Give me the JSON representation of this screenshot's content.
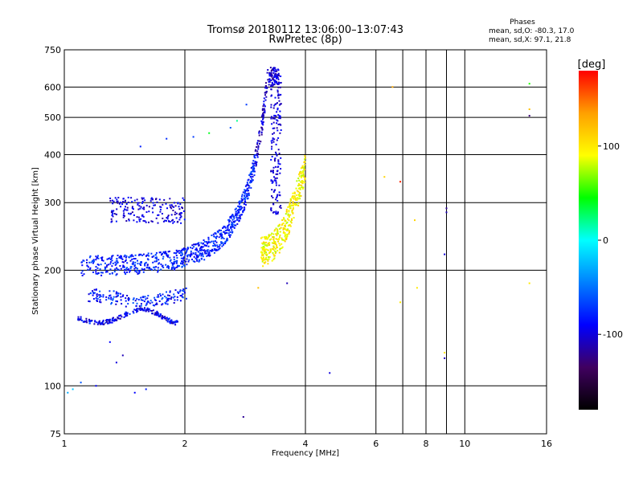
{
  "chart_data": {
    "type": "scatter",
    "title": "Tromsø 20180112 13:06:00–13:07:43",
    "subtitle": "RwPretec (8p)",
    "stats": {
      "heading": "Phases",
      "line_o": "mean, sd,O: -80.3, 17.0",
      "line_x": "mean, sd,X:  97.1, 21.8"
    },
    "xlabel": "Frequency [MHz]",
    "ylabel": "Stationary phase Virtual Height [km]",
    "x_scale": "log",
    "y_scale": "log",
    "xlim": [
      1,
      16
    ],
    "ylim": [
      75,
      750
    ],
    "x_ticks": [
      1,
      2,
      4,
      6,
      8,
      10,
      16
    ],
    "x_tick_labels": [
      "1",
      "2",
      "4",
      "6",
      "8",
      "10",
      "16"
    ],
    "x_minor_grid": [
      7,
      9
    ],
    "y_ticks": [
      75,
      100,
      200,
      300,
      400,
      500,
      600,
      750
    ],
    "y_tick_labels": [
      "75",
      "100",
      "200",
      "300",
      "400",
      "500",
      "600",
      "750"
    ],
    "grid": true,
    "colorbar": {
      "label": "[deg]",
      "range": [
        -180,
        180
      ],
      "ticks": [
        100,
        0,
        -100
      ],
      "tick_labels": [
        "100",
        "0",
        "-100"
      ],
      "colors": [
        "#ff0000",
        "#ffa000",
        "#ffff00",
        "#00ff00",
        "#00ffff",
        "#0080ff",
        "#0000ff",
        "#400060",
        "#000000"
      ]
    },
    "traces": [
      {
        "name": "E-layer echoes",
        "phase": -95,
        "spread": 25,
        "freq": [
          1.05,
          2.0
        ],
        "height": [
          150,
          160
        ]
      },
      {
        "name": "F-layer O-mode trace",
        "phase": -80,
        "spread": 20,
        "freq": [
          1.1,
          3.45
        ],
        "height": [
          205,
          640
        ]
      },
      {
        "name": "Spread F patches",
        "phase": -100,
        "spread": 20,
        "freq": [
          1.3,
          2.0
        ],
        "height": [
          270,
          310
        ]
      },
      {
        "name": "F-layer X-mode trace",
        "phase": 95,
        "spread": 20,
        "freq": [
          3.1,
          4.0
        ],
        "height": [
          225,
          420
        ]
      }
    ],
    "points": [
      {
        "x": 1.55,
        "y": 420,
        "phase": -80
      },
      {
        "x": 1.8,
        "y": 440,
        "phase": -75
      },
      {
        "x": 2.1,
        "y": 445,
        "phase": -70
      },
      {
        "x": 2.3,
        "y": 455,
        "phase": 40
      },
      {
        "x": 2.6,
        "y": 470,
        "phase": -60
      },
      {
        "x": 2.7,
        "y": 490,
        "phase": 20
      },
      {
        "x": 2.85,
        "y": 540,
        "phase": -70
      },
      {
        "x": 3.05,
        "y": 180,
        "phase": 120
      },
      {
        "x": 3.6,
        "y": 185,
        "phase": -110
      },
      {
        "x": 4.6,
        "y": 108,
        "phase": -100
      },
      {
        "x": 2.8,
        "y": 83,
        "phase": -120
      },
      {
        "x": 6.6,
        "y": 600,
        "phase": 130
      },
      {
        "x": 6.3,
        "y": 350,
        "phase": 110
      },
      {
        "x": 6.9,
        "y": 340,
        "phase": 170
      },
      {
        "x": 7.5,
        "y": 270,
        "phase": 110
      },
      {
        "x": 7.6,
        "y": 180,
        "phase": 100
      },
      {
        "x": 6.9,
        "y": 165,
        "phase": 100
      },
      {
        "x": 8.9,
        "y": 220,
        "phase": -100
      },
      {
        "x": 9.0,
        "y": 283,
        "phase": -110
      },
      {
        "x": 9.0,
        "y": 290,
        "phase": -120
      },
      {
        "x": 8.9,
        "y": 122,
        "phase": 100
      },
      {
        "x": 8.9,
        "y": 118,
        "phase": -110
      },
      {
        "x": 14.5,
        "y": 612,
        "phase": 50
      },
      {
        "x": 14.5,
        "y": 525,
        "phase": 120
      },
      {
        "x": 14.5,
        "y": 505,
        "phase": -130
      },
      {
        "x": 14.5,
        "y": 185,
        "phase": 100
      },
      {
        "x": 1.05,
        "y": 98,
        "phase": -20
      },
      {
        "x": 1.02,
        "y": 96,
        "phase": -30
      },
      {
        "x": 1.1,
        "y": 102,
        "phase": -60
      },
      {
        "x": 1.2,
        "y": 100,
        "phase": -90
      },
      {
        "x": 1.3,
        "y": 130,
        "phase": -90
      },
      {
        "x": 1.35,
        "y": 115,
        "phase": -100
      },
      {
        "x": 1.4,
        "y": 120,
        "phase": -110
      },
      {
        "x": 1.5,
        "y": 96,
        "phase": -90
      },
      {
        "x": 1.6,
        "y": 98,
        "phase": -80
      }
    ]
  }
}
